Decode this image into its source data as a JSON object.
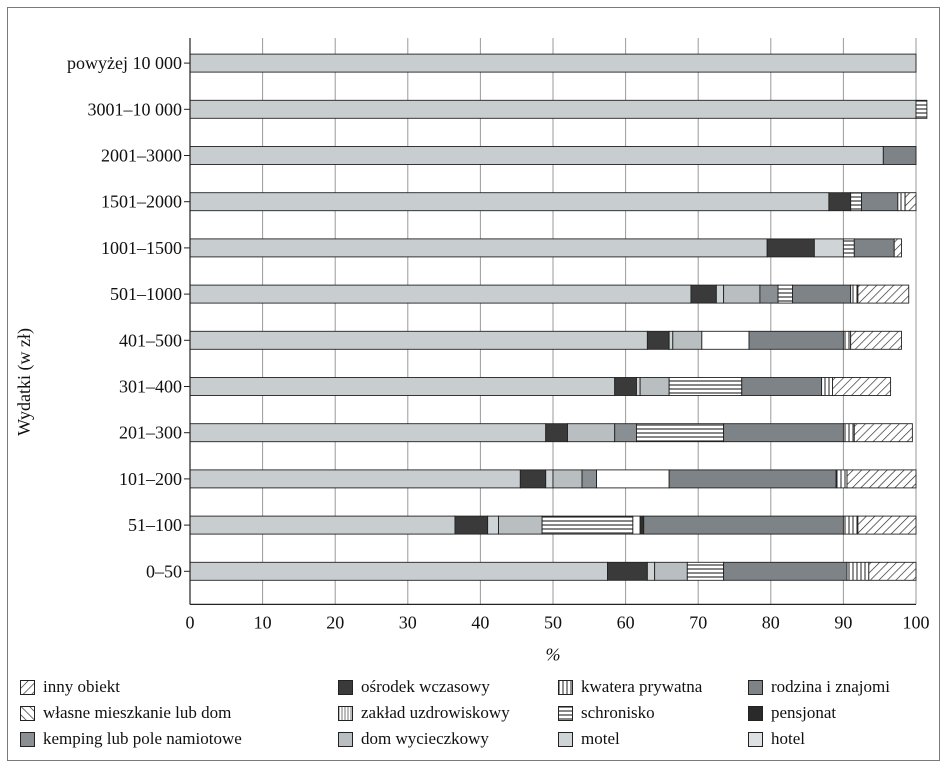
{
  "chart_data": {
    "type": "bar",
    "orientation": "horizontal",
    "stacked": true,
    "xlabel": "%",
    "ylabel": "Wydatki (w zł)",
    "xlim": [
      0,
      100
    ],
    "xticks": [
      "0",
      "10",
      "20",
      "30",
      "40",
      "50",
      "60",
      "70",
      "80",
      "90",
      "100"
    ],
    "grid": true,
    "legend_position": "bottom",
    "categories": [
      "powyżej 10 000",
      "3001–10 000",
      "2001–3000",
      "1501–2000",
      "1001–1500",
      "501–1000",
      "401–500",
      "301–400",
      "201–300",
      "101–200",
      "51–100",
      "0–50"
    ],
    "series": [
      {
        "name": "hotel",
        "color": "#c8cdd0",
        "pattern": "solid",
        "values": [
          100,
          100,
          95.5,
          88,
          79.5,
          69,
          63,
          58.5,
          49,
          45.5,
          36.5,
          57.5
        ]
      },
      {
        "name": "pensjonat",
        "color": "#3a3a3a",
        "pattern": "solid",
        "values": [
          0,
          0,
          0,
          3,
          6.5,
          3.5,
          3,
          3,
          3,
          3.5,
          4.5,
          5.5
        ]
      },
      {
        "name": "motel",
        "color": "#cfd4d7",
        "pattern": "solid",
        "values": [
          0,
          0,
          0,
          0,
          4,
          1,
          0.5,
          0.5,
          0,
          1,
          1.5,
          1
        ]
      },
      {
        "name": "dom wycieczkowy",
        "color": "#b9bec1",
        "pattern": "solid",
        "values": [
          0,
          0,
          0,
          0,
          0,
          5,
          4,
          4,
          6.5,
          4,
          6,
          4.5
        ]
      },
      {
        "name": "kemping lub pole namiotowe",
        "color": "#8a8f93",
        "pattern": "solid",
        "values": [
          0,
          0,
          0,
          0,
          0,
          2.5,
          0,
          0,
          3,
          2,
          0,
          0
        ]
      },
      {
        "name": "schronisko",
        "color": "#ffffff",
        "pattern": "hlines",
        "values": [
          0,
          1.5,
          0,
          1.5,
          1.5,
          2,
          0,
          10,
          12,
          0,
          12.5,
          5
        ]
      },
      {
        "name": "zakład uzdrowiskowy",
        "color": "#ffffff",
        "pattern": "solid",
        "values": [
          0,
          0,
          0,
          0,
          0,
          0,
          6.5,
          0,
          0,
          10,
          1,
          0
        ]
      },
      {
        "name": "kwatera prywatna",
        "color": "#ffffff",
        "pattern": "vlines",
        "values": [
          0,
          0,
          0,
          0,
          0,
          0,
          0,
          0,
          0,
          0,
          0,
          0
        ]
      },
      {
        "name": "ośrodek wczasowy",
        "color": "#2e2e2e",
        "pattern": "solid",
        "values": [
          0,
          0,
          0,
          0,
          0,
          0,
          0,
          0,
          0,
          0,
          0.5,
          0
        ]
      },
      {
        "name": "rodzina i znajomi",
        "color": "#7e8387",
        "pattern": "solid",
        "values": [
          0,
          0,
          4.5,
          5,
          5.5,
          8,
          13,
          11,
          16.5,
          23,
          27.5,
          17
        ]
      },
      {
        "name": "własne mieszkanie lub dom",
        "color": "#ffffff",
        "pattern": "vlines",
        "values": [
          0,
          0,
          0,
          1,
          0,
          1,
          1,
          1.5,
          1.5,
          1.5,
          2,
          3
        ]
      },
      {
        "name": "inny obiekt",
        "color": "#ffffff",
        "pattern": "diag",
        "values": [
          0,
          0,
          0,
          1.5,
          1,
          7,
          7,
          8,
          8,
          9.5,
          8,
          6.5
        ]
      }
    ]
  },
  "legend": {
    "items": [
      {
        "label": "inny obiekt",
        "pattern": "diag",
        "color": "#ffffff"
      },
      {
        "label": "ośrodek wczasowy",
        "pattern": "solid",
        "color": "#3a3a3a"
      },
      {
        "label": "kwatera prywatna",
        "pattern": "vlines",
        "color": "#ffffff"
      },
      {
        "label": "rodzina i znajomi",
        "pattern": "solid",
        "color": "#7e8387"
      },
      {
        "label": "własne mieszkanie lub dom",
        "pattern": "backdiag",
        "color": "#ffffff"
      },
      {
        "label": "zakład uzdrowiskowy",
        "pattern": "vlines-fine",
        "color": "#ffffff"
      },
      {
        "label": "schronisko",
        "pattern": "hlines",
        "color": "#ffffff"
      },
      {
        "label": "pensjonat",
        "pattern": "solid",
        "color": "#2a2a2a"
      },
      {
        "label": "kemping lub pole namiotowe",
        "pattern": "solid",
        "color": "#8a8f93"
      },
      {
        "label": "dom wycieczkowy",
        "pattern": "solid",
        "color": "#b9bec1"
      },
      {
        "label": "motel",
        "pattern": "solid",
        "color": "#cfd4d7"
      },
      {
        "label": "hotel",
        "pattern": "solid",
        "color": "#dde1e3"
      }
    ]
  }
}
